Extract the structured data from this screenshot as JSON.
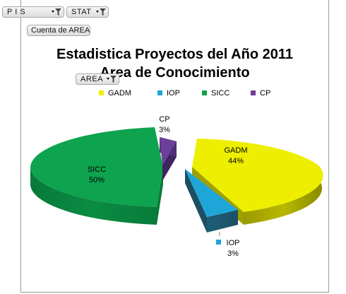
{
  "filters": {
    "pis_label": "P I S",
    "stat_label": "STAT",
    "value_field_label": "Cuenta de AREA",
    "area_label": "AREA"
  },
  "chart_data": {
    "type": "pie",
    "title_line1": "Estadistica Proyectos del Año 2011",
    "title_line2": "Area de Conocimiento",
    "legend_position": "top",
    "slices": [
      {
        "name": "GADM",
        "percent": 44,
        "label": "44%",
        "color": "#eeee00",
        "exploded": true
      },
      {
        "name": "IOP",
        "percent": 3,
        "label": "3%",
        "color": "#1ea6d8",
        "exploded": true
      },
      {
        "name": "SICC",
        "percent": 50,
        "label": "50%",
        "color": "#0ea34e",
        "exploded": false
      },
      {
        "name": "CP",
        "percent": 3,
        "label": "3%",
        "color": "#6b3f9a",
        "exploded": true
      }
    ]
  }
}
